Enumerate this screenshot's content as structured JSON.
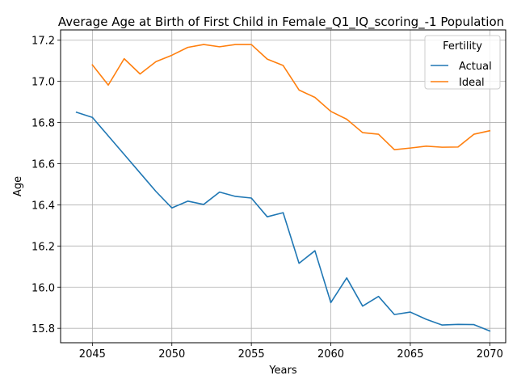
{
  "chart_data": {
    "type": "line",
    "title": "Average Age at Birth of First Child in Female_Q1_IQ_scoring_-1 Population",
    "xlabel": "Years",
    "ylabel": "Age",
    "xlim": [
      2043,
      2071
    ],
    "ylim": [
      15.73,
      17.25
    ],
    "xticks": [
      2045,
      2050,
      2055,
      2060,
      2065,
      2070
    ],
    "yticks": [
      15.8,
      16.0,
      16.2,
      16.4,
      16.6,
      16.8,
      17.0,
      17.2
    ],
    "ytick_labels": [
      "15.8",
      "16.0",
      "16.2",
      "16.4",
      "16.6",
      "16.8",
      "17.0",
      "17.2"
    ],
    "grid": true,
    "legend": {
      "title": "Fertility",
      "placement": "top-right"
    },
    "series": [
      {
        "name": "Actual",
        "color": "#1f77b4",
        "x": [
          2044,
          2045,
          2046,
          2047,
          2048,
          2049,
          2050,
          2051,
          2052,
          2053,
          2054,
          2055,
          2056,
          2057,
          2058,
          2059,
          2060,
          2061,
          2062,
          2063,
          2064,
          2065,
          2066,
          2067,
          2068,
          2069,
          2070
        ],
        "y": [
          16.85,
          16.825,
          16.735,
          16.645,
          16.555,
          16.465,
          16.385,
          16.418,
          16.402,
          16.462,
          16.441,
          16.433,
          16.342,
          16.362,
          16.116,
          16.177,
          15.925,
          16.045,
          15.908,
          15.955,
          15.867,
          15.879,
          15.844,
          15.816,
          15.819,
          15.818,
          15.787
        ]
      },
      {
        "name": "Ideal",
        "color": "#ff7f0e",
        "x": [
          2045,
          2046,
          2047,
          2048,
          2049,
          2050,
          2051,
          2052,
          2053,
          2054,
          2055,
          2056,
          2057,
          2058,
          2059,
          2060,
          2061,
          2062,
          2063,
          2064,
          2065,
          2066,
          2067,
          2068,
          2069,
          2070
        ],
        "y": [
          17.08,
          16.982,
          17.11,
          17.036,
          17.096,
          17.127,
          17.165,
          17.179,
          17.168,
          17.179,
          17.179,
          17.108,
          17.077,
          16.958,
          16.922,
          16.854,
          16.816,
          16.751,
          16.743,
          16.668,
          16.676,
          16.685,
          16.68,
          16.681,
          16.743,
          16.76
        ]
      }
    ]
  }
}
